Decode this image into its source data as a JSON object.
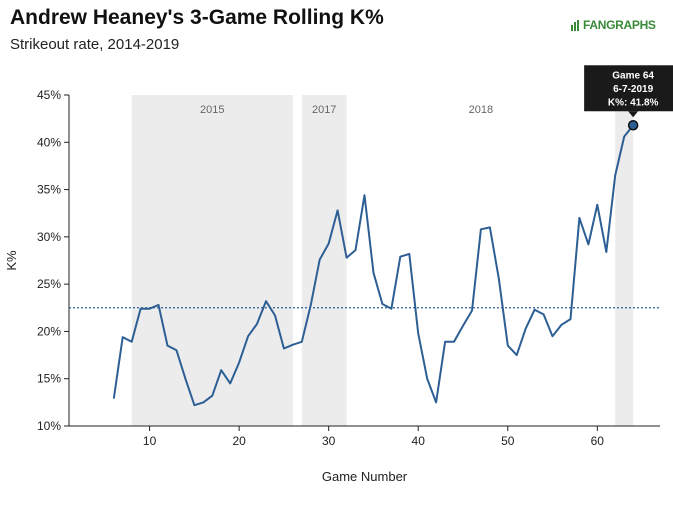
{
  "chart_data": {
    "type": "line",
    "title": "Andrew Heaney's 3-Game Rolling K%",
    "subtitle": "Strikeout rate, 2014-2019",
    "xlabel": "Game Number",
    "ylabel": "K%",
    "xlim": [
      1,
      67
    ],
    "ylim": [
      10,
      45
    ],
    "x_ticks": [
      10,
      20,
      30,
      40,
      50,
      60
    ],
    "y_ticks": [
      {
        "value": 10,
        "label": "10%"
      },
      {
        "value": 15,
        "label": "15%"
      },
      {
        "value": 20,
        "label": "20%"
      },
      {
        "value": 25,
        "label": "25%"
      },
      {
        "value": 30,
        "label": "30%"
      },
      {
        "value": 35,
        "label": "35%"
      },
      {
        "value": 40,
        "label": "40%"
      },
      {
        "value": 45,
        "label": "45%"
      }
    ],
    "season_bands": [
      {
        "label": "2015",
        "start": 8,
        "end": 26
      },
      {
        "label": "2017",
        "start": 27,
        "end": 32
      },
      {
        "label": "2018",
        "start": 32,
        "end": 62,
        "shaded": false
      },
      {
        "label": "",
        "start": 62,
        "end": 64
      }
    ],
    "average_line": 22.5,
    "series": [
      {
        "name": "3-Game Rolling K%",
        "color": "#2d5f94",
        "x": [
          6,
          7,
          8,
          9,
          10,
          11,
          12,
          13,
          14,
          15,
          16,
          17,
          18,
          19,
          20,
          21,
          22,
          23,
          24,
          25,
          26,
          27,
          28,
          29,
          30,
          31,
          32,
          33,
          34,
          35,
          36,
          37,
          38,
          39,
          40,
          41,
          42,
          43,
          44,
          45,
          46,
          47,
          48,
          49,
          50,
          51,
          52,
          53,
          54,
          55,
          56,
          57,
          58,
          59,
          60,
          61,
          62,
          63,
          64
        ],
        "y": [
          12.9,
          19.4,
          18.9,
          22.4,
          22.4,
          22.8,
          18.5,
          18.0,
          15.0,
          12.2,
          12.5,
          13.2,
          15.9,
          14.5,
          16.7,
          19.5,
          20.8,
          23.2,
          21.7,
          18.2,
          18.6,
          18.9,
          22.8,
          27.6,
          29.3,
          32.8,
          27.8,
          28.6,
          34.4,
          26.2,
          22.9,
          22.4,
          27.9,
          28.2,
          19.8,
          15.0,
          12.5,
          18.9,
          18.9,
          20.6,
          22.2,
          30.8,
          31.0,
          25.6,
          18.5,
          17.5,
          20.3,
          22.3,
          21.8,
          19.5,
          20.7,
          21.3,
          32.0,
          29.2,
          33.4,
          28.4,
          36.5,
          40.6,
          41.8
        ]
      }
    ],
    "highlight": {
      "x": 64,
      "y": 41.8,
      "line1": "Game 64",
      "line2": "6-7-2019",
      "line3": "K%: 41.8%"
    }
  },
  "branding": {
    "logo_text": "FANGRAPHS",
    "brand_color": "#3a8a3a"
  }
}
